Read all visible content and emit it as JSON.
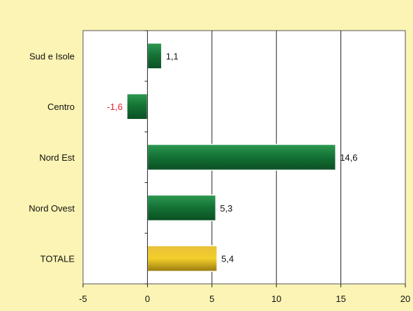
{
  "chart_data": {
    "type": "bar",
    "orientation": "horizontal",
    "categories": [
      "Sud e Isole",
      "Centro",
      "Nord Est",
      "Nord Ovest",
      "TOTALE"
    ],
    "values": [
      1.1,
      -1.6,
      14.6,
      5.3,
      5.4
    ],
    "value_labels": [
      "1,1",
      "-1,6",
      "14,6",
      "5,3",
      "5,4"
    ],
    "x_ticks": [
      -5,
      0,
      5,
      10,
      15,
      20
    ],
    "x_tick_labels": [
      "-5",
      "0",
      "5",
      "10",
      "15",
      "20"
    ],
    "xlim": [
      -5,
      20
    ],
    "grid": "vertical",
    "legend": "none",
    "colors": {
      "background": "#fbf4b4",
      "plot_area": "#ffffff",
      "bar": "#1a7a3a",
      "bar_highlight": "#d4a817",
      "negative_label": "#e8202a",
      "label": "#111111"
    },
    "highlight_category": "TOTALE"
  }
}
